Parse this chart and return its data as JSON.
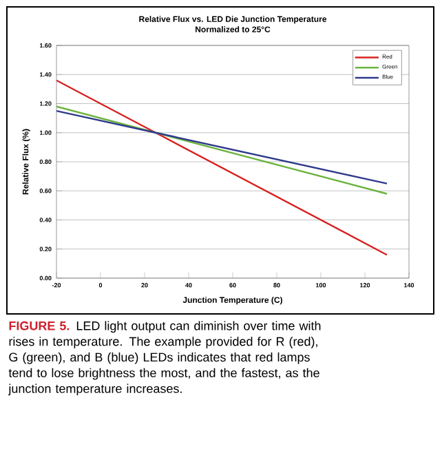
{
  "chart_data": {
    "type": "line",
    "title": "Relative Flux vs. LED Die Junction Temperature",
    "subtitle": "Normalized to 25°C",
    "xlabel": "Junction Temperature (C)",
    "ylabel": "Relative Flux (%)",
    "x": [
      -20,
      25,
      130
    ],
    "series": [
      {
        "name": "Red",
        "color": "#d82020",
        "values": [
          1.36,
          1.0,
          0.16
        ]
      },
      {
        "name": "Green",
        "color": "#6cb33f",
        "values": [
          1.18,
          1.0,
          0.58
        ]
      },
      {
        "name": "Blue",
        "color": "#2e3a8c",
        "values": [
          1.15,
          1.0,
          0.65
        ]
      }
    ],
    "xlim": [
      -20,
      140
    ],
    "xticks": [
      -20,
      0,
      20,
      40,
      60,
      80,
      100,
      120,
      140
    ],
    "ylim": [
      0,
      1.6
    ],
    "yticks": [
      {
        "value": 0,
        "label": "0.00"
      },
      {
        "value": 0.2,
        "label": "0.20"
      },
      {
        "value": 0.4,
        "label": "0.40"
      },
      {
        "value": 0.6,
        "label": "0.60"
      },
      {
        "value": 0.8,
        "label": "0.80"
      },
      {
        "value": 1,
        "label": "1.00"
      },
      {
        "value": 1.2,
        "label": "1.20"
      },
      {
        "value": 1.4,
        "label": "1.40"
      },
      {
        "value": 1.6,
        "label": "1.60"
      }
    ],
    "grid": "y",
    "legend": "top right",
    "marker": "none",
    "line_style": "solid",
    "annotations": [
      "FIGURE 5.",
      "LED light output can diminish over time with rises in temperature. The example provided for R (red), G (green), and B (blue) LEDs indicates that red lamps tend to lose brightness the most, and the fastest, as the junction temperature increases."
    ]
  }
}
